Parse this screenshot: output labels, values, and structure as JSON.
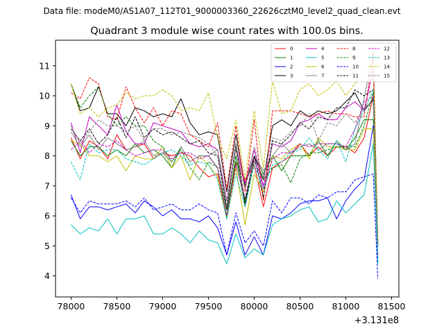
{
  "suptitle": "Data file: modeM0/AS1A07_112T01_9000003360_22626cztM0_level2_quad_clean.evt",
  "chart_data": {
    "type": "line",
    "title": "Quadrant 3 module wise count rates with 100.0s bins.",
    "xlabel": "",
    "ylabel": "",
    "x_offset_label": "+3.131e8",
    "xlim": [
      77830,
      81580
    ],
    "ylim": [
      3.3,
      11.85
    ],
    "xticks": [
      78000,
      78500,
      79000,
      79500,
      80000,
      80500,
      81000,
      81500
    ],
    "xtick_labels": [
      "78000",
      "78500",
      "79000",
      "79500",
      "80000",
      "80500",
      "81000",
      "81500"
    ],
    "yticks": [
      4,
      5,
      6,
      7,
      8,
      9,
      10,
      11
    ],
    "ytick_labels": [
      "4",
      "5",
      "6",
      "7",
      "8",
      "9",
      "10",
      "11"
    ],
    "grid": false,
    "legend_position": "top-right",
    "legend_columns": 4,
    "x": [
      78000,
      78100,
      78200,
      78300,
      78400,
      78500,
      78600,
      78700,
      78800,
      78900,
      79000,
      79100,
      79200,
      79300,
      79400,
      79500,
      79600,
      79700,
      79800,
      79900,
      80000,
      80100,
      80200,
      80300,
      80400,
      80500,
      80600,
      80700,
      80800,
      80900,
      81000,
      81100,
      81200,
      81300,
      81350
    ],
    "series": [
      {
        "name": "0",
        "color": "#ff0000",
        "dash": "solid",
        "values": [
          8.6,
          7.9,
          8.5,
          8.3,
          7.9,
          8.7,
          8.2,
          8.3,
          8.4,
          7.9,
          8.1,
          8.0,
          8.1,
          8.0,
          7.6,
          7.3,
          7.4,
          5.9,
          7.8,
          7.2,
          7.7,
          6.3,
          7.6,
          7.8,
          8.0,
          8.4,
          8.0,
          8.3,
          8.0,
          8.3,
          8.3,
          8.1,
          8.6,
          10.0,
          5.1
        ]
      },
      {
        "name": "1",
        "color": "#008000",
        "dash": "solid",
        "values": [
          8.5,
          8.0,
          8.3,
          8.3,
          8.0,
          8.2,
          8.0,
          8.4,
          8.1,
          8.2,
          8.0,
          7.6,
          8.3,
          7.8,
          8.0,
          8.0,
          7.6,
          6.0,
          8.0,
          6.5,
          8.0,
          7.4,
          8.0,
          7.5,
          8.0,
          8.0,
          8.0,
          8.5,
          8.0,
          8.5,
          8.2,
          8.6,
          9.2,
          9.2,
          5.0
        ]
      },
      {
        "name": "2",
        "color": "#0000ff",
        "dash": "solid",
        "values": [
          6.7,
          5.9,
          6.3,
          6.3,
          6.2,
          6.3,
          6.4,
          6.1,
          6.5,
          6.3,
          6.0,
          6.2,
          5.9,
          5.9,
          5.8,
          6.0,
          5.6,
          4.7,
          5.8,
          4.7,
          5.3,
          4.7,
          6.0,
          5.9,
          6.1,
          6.4,
          6.5,
          6.5,
          6.6,
          5.9,
          6.5,
          6.9,
          7.2,
          9.0,
          4.5
        ]
      },
      {
        "name": "3",
        "color": "#000000",
        "dash": "solid",
        "values": [
          10.4,
          9.5,
          9.6,
          10.3,
          9.4,
          9.4,
          9.0,
          9.6,
          9.5,
          9.3,
          9.4,
          9.3,
          9.9,
          9.1,
          8.7,
          8.8,
          8.7,
          6.8,
          8.7,
          7.0,
          8.0,
          7.2,
          9.0,
          9.2,
          9.0,
          9.5,
          9.3,
          9.5,
          9.4,
          9.5,
          9.8,
          10.1,
          9.5,
          9.9,
          5.2
        ]
      },
      {
        "name": "4",
        "color": "#bf00bf",
        "dash": "solid",
        "values": [
          9.1,
          8.1,
          9.3,
          9.0,
          8.7,
          9.7,
          8.8,
          8.4,
          8.4,
          9.1,
          9.0,
          8.9,
          8.8,
          8.4,
          8.3,
          8.4,
          8.2,
          6.5,
          8.3,
          7.1,
          8.2,
          7.0,
          8.4,
          8.3,
          8.5,
          9.1,
          9.2,
          9.4,
          9.2,
          9.2,
          9.6,
          9.8,
          9.5,
          10.9,
          5.2
        ]
      },
      {
        "name": "5",
        "color": "#00bfbf",
        "dash": "solid",
        "values": [
          5.7,
          5.4,
          5.6,
          5.5,
          5.9,
          5.4,
          5.9,
          5.9,
          6.0,
          5.4,
          5.4,
          5.6,
          5.4,
          5.1,
          5.5,
          5.2,
          5.1,
          4.4,
          5.4,
          4.6,
          4.9,
          4.7,
          5.7,
          5.9,
          6.0,
          6.2,
          6.3,
          5.8,
          5.9,
          6.5,
          6.1,
          6.4,
          6.7,
          8.4,
          4.4
        ]
      },
      {
        "name": "6",
        "color": "#bfbf00",
        "dash": "solid",
        "values": [
          8.5,
          8.4,
          8.0,
          8.0,
          7.8,
          8.0,
          7.5,
          8.0,
          7.9,
          7.9,
          8.3,
          7.6,
          8.0,
          7.2,
          8.0,
          7.7,
          7.3,
          5.9,
          7.6,
          5.7,
          7.4,
          6.8,
          8.0,
          7.9,
          8.2,
          8.4,
          7.9,
          8.6,
          8.3,
          8.3,
          8.2,
          8.2,
          8.9,
          8.9,
          5.1
        ]
      },
      {
        "name": "7",
        "color": "#7f7f7f",
        "dash": "solid",
        "values": [
          8.8,
          8.3,
          8.7,
          8.2,
          8.6,
          8.4,
          8.2,
          8.3,
          8.5,
          8.0,
          8.1,
          7.8,
          8.3,
          7.8,
          8.0,
          8.0,
          8.2,
          6.3,
          8.3,
          6.3,
          8.0,
          7.5,
          8.0,
          8.4,
          8.1,
          8.3,
          8.4,
          8.2,
          8.4,
          8.4,
          8.2,
          8.4,
          9.9,
          11.5,
          5.1
        ]
      },
      {
        "name": "8",
        "color": "#ff0000",
        "dash": "dashed",
        "values": [
          10.1,
          9.9,
          10.6,
          10.4,
          9.3,
          9.2,
          10.3,
          9.6,
          9.1,
          9.6,
          9.0,
          9.5,
          9.4,
          8.7,
          8.5,
          8.3,
          9.1,
          6.9,
          9.0,
          6.8,
          9.2,
          6.5,
          9.5,
          9.5,
          9.5,
          9.4,
          9.3,
          9.4,
          9.5,
          9.4,
          9.4,
          9.3,
          9.3,
          11.4,
          5.0
        ]
      },
      {
        "name": "9",
        "color": "#008000",
        "dash": "dashed",
        "values": [
          10.4,
          9.6,
          10.0,
          10.3,
          9.4,
          9.0,
          9.3,
          9.0,
          9.0,
          8.5,
          8.3,
          7.8,
          8.2,
          7.6,
          7.2,
          7.8,
          7.6,
          6.2,
          7.8,
          6.4,
          7.8,
          7.2,
          7.6,
          7.7,
          7.1,
          7.9,
          8.1,
          8.1,
          8.2,
          8.3,
          8.3,
          8.3,
          9.0,
          10.1,
          5.0
        ]
      },
      {
        "name": "10",
        "color": "#0000ff",
        "dash": "dashed",
        "values": [
          6.6,
          6.1,
          6.5,
          6.4,
          6.4,
          6.4,
          6.5,
          6.3,
          6.6,
          6.2,
          6.3,
          6.4,
          6.2,
          6.2,
          6.4,
          6.2,
          6.1,
          4.7,
          6.1,
          5.1,
          5.5,
          5.0,
          6.5,
          6.1,
          6.6,
          6.6,
          6.4,
          6.7,
          6.6,
          6.8,
          6.8,
          7.2,
          7.3,
          7.4,
          3.9
        ]
      },
      {
        "name": "11",
        "color": "#000000",
        "dash": "dashed",
        "values": [
          8.9,
          8.5,
          8.9,
          8.4,
          8.7,
          9.3,
          8.6,
          9.3,
          8.6,
          8.9,
          8.7,
          8.8,
          8.6,
          8.4,
          8.5,
          8.1,
          8.0,
          6.2,
          8.4,
          6.4,
          8.0,
          6.6,
          8.5,
          8.4,
          8.7,
          9.1,
          8.9,
          9.3,
          9.2,
          9.6,
          9.6,
          10.2,
          10.0,
          10.2,
          5.0
        ]
      },
      {
        "name": "12",
        "color": "#bf00bf",
        "dash": "dashed",
        "values": [
          8.2,
          8.5,
          8.1,
          8.4,
          8.3,
          8.5,
          8.2,
          8.0,
          8.1,
          8.2,
          8.2,
          7.9,
          8.1,
          8.1,
          7.9,
          8.0,
          7.6,
          6.0,
          7.7,
          6.6,
          7.9,
          6.9,
          7.9,
          8.1,
          8.1,
          8.4,
          8.3,
          8.4,
          8.4,
          8.4,
          8.3,
          8.9,
          9.8,
          10.0,
          4.7
        ]
      },
      {
        "name": "13",
        "color": "#00bfbf",
        "dash": "dashed",
        "values": [
          7.8,
          7.2,
          8.4,
          8.1,
          8.2,
          8.2,
          7.9,
          7.8,
          7.7,
          7.9,
          8.1,
          8.2,
          8.0,
          7.7,
          7.8,
          7.7,
          7.2,
          5.9,
          7.4,
          6.3,
          7.7,
          6.9,
          7.7,
          7.8,
          8.1,
          8.2,
          8.6,
          8.2,
          7.9,
          8.5,
          7.8,
          8.9,
          9.5,
          10.2,
          4.8
        ]
      },
      {
        "name": "14",
        "color": "#bfbf00",
        "dash": "dashed",
        "values": [
          10.4,
          9.4,
          9.6,
          9.3,
          9.6,
          9.7,
          10.1,
          9.9,
          10.0,
          10.0,
          10.2,
          10.0,
          9.5,
          9.6,
          9.5,
          10.1,
          8.6,
          7.9,
          9.2,
          7.2,
          9.5,
          7.6,
          10.5,
          9.4,
          9.5,
          10.2,
          10.4,
          10.0,
          10.2,
          10.5,
          10.0,
          10.4,
          10.8,
          11.1,
          5.2
        ]
      },
      {
        "name": "15",
        "color": "#7f7f7f",
        "dash": "dashed",
        "values": [
          9.0,
          8.4,
          8.8,
          9.2,
          9.0,
          9.0,
          8.8,
          9.0,
          8.5,
          8.9,
          8.9,
          8.7,
          8.8,
          8.7,
          8.6,
          8.4,
          8.0,
          6.5,
          8.2,
          6.9,
          8.3,
          7.3,
          8.6,
          8.5,
          8.8,
          9.0,
          9.4,
          8.5,
          9.1,
          9.0,
          9.4,
          9.1,
          9.6,
          9.8,
          5.0
        ]
      }
    ]
  }
}
